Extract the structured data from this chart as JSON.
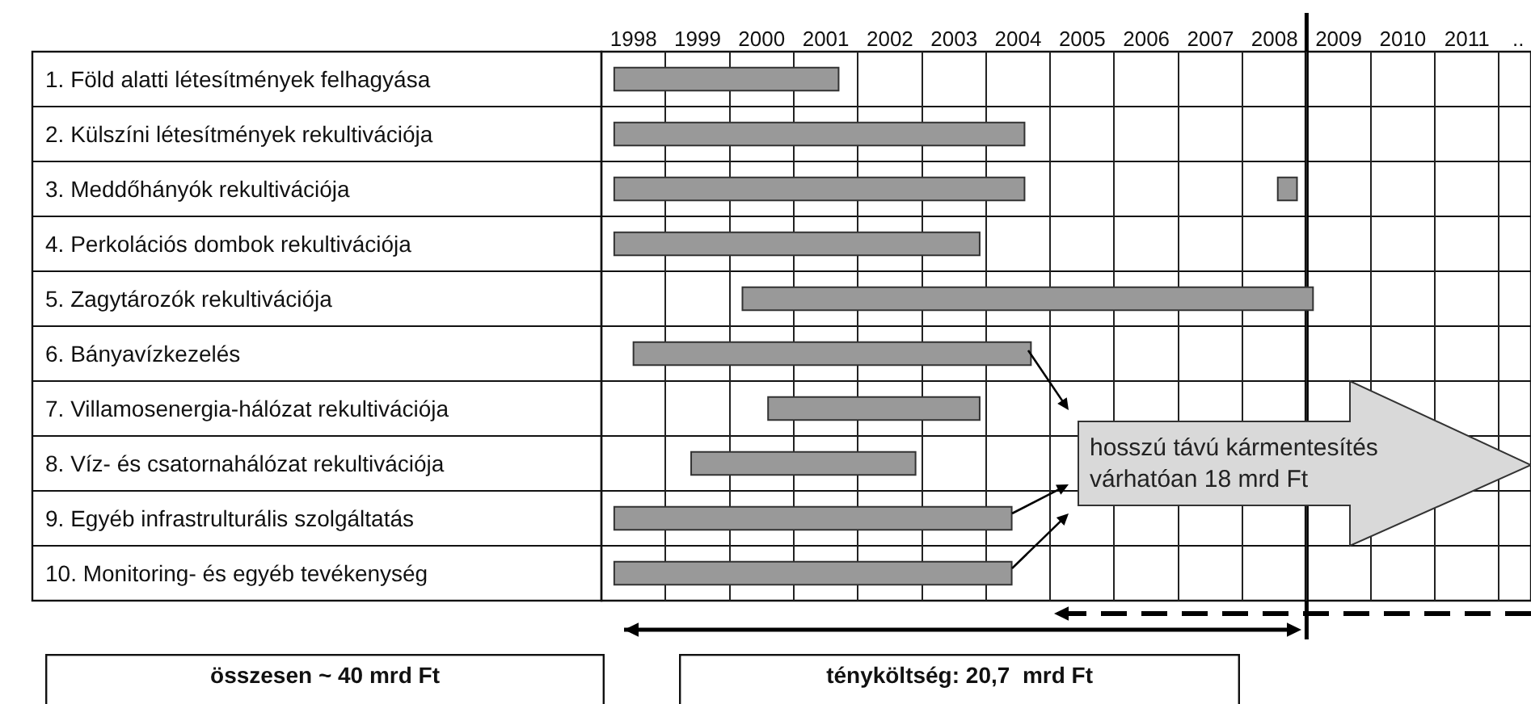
{
  "chart_data": {
    "type": "bar",
    "orientation": "horizontal",
    "categories": [
      "1. Föld alatti létesítmények felhagyása",
      "2. Külszíni létesítmények rekultivációja",
      "3. Meddőhányók rekultivációja",
      "4. Perkolációs dombok rekultivációja",
      "5. Zagytározók rekultivációja",
      "6. Bányavízkezelés",
      "7. Villamosenergia-hálózat rekultivációja",
      "8. Víz- és csatornahálózat rekultivációja",
      "9. Egyéb infrastrulturális szolgáltatás",
      "10. Monitoring- és egyéb tevékenység"
    ],
    "series": [
      {
        "color": "#999999",
        "base": [
          1998.2,
          1998.2,
          1998.2,
          1998.2,
          2000.2,
          1998.5,
          2000.6,
          1999.4,
          1998.2,
          1998.2
        ],
        "values": [
          3.5,
          6.4,
          6.4,
          5.7,
          8.9,
          6.2,
          3.3,
          3.5,
          6.2,
          6.2
        ]
      },
      {
        "color": "#999999",
        "base": [
          null,
          null,
          2008.55,
          null,
          null,
          null,
          null,
          null,
          null,
          null
        ],
        "values": [
          null,
          null,
          0.3,
          null,
          null,
          null,
          null,
          null,
          null,
          null
        ]
      }
    ],
    "xlim": [
      1998,
      2012.5
    ],
    "xticks": [
      {
        "value": 1998.5,
        "label": "1998"
      },
      {
        "value": 1999.5,
        "label": "1999"
      },
      {
        "value": 2000.5,
        "label": "2000"
      },
      {
        "value": 2001.5,
        "label": "2001"
      },
      {
        "value": 2002.5,
        "label": "2002"
      },
      {
        "value": 2003.5,
        "label": "2003"
      },
      {
        "value": 2004.5,
        "label": "2004"
      },
      {
        "value": 2005.5,
        "label": "2005"
      },
      {
        "value": 2006.5,
        "label": "2006"
      },
      {
        "value": 2007.5,
        "label": "2007"
      },
      {
        "value": 2008.5,
        "label": "2008"
      },
      {
        "value": 2009.5,
        "label": "2009"
      },
      {
        "value": 2010.5,
        "label": "2010"
      },
      {
        "value": 2011.5,
        "label": "2011"
      },
      {
        "value": 2012.3,
        "label": ".."
      }
    ],
    "grid": true,
    "ref_lines": [
      {
        "axis": "x",
        "value": 2009,
        "color": "#000000"
      }
    ],
    "annotations": [
      "hosszú távú kármentesítés\nvárhatóan 18 mrd Ft",
      "összesen ~ 40 mrd Ft",
      "tényköltség: 20,7  mrd Ft"
    ]
  }
}
